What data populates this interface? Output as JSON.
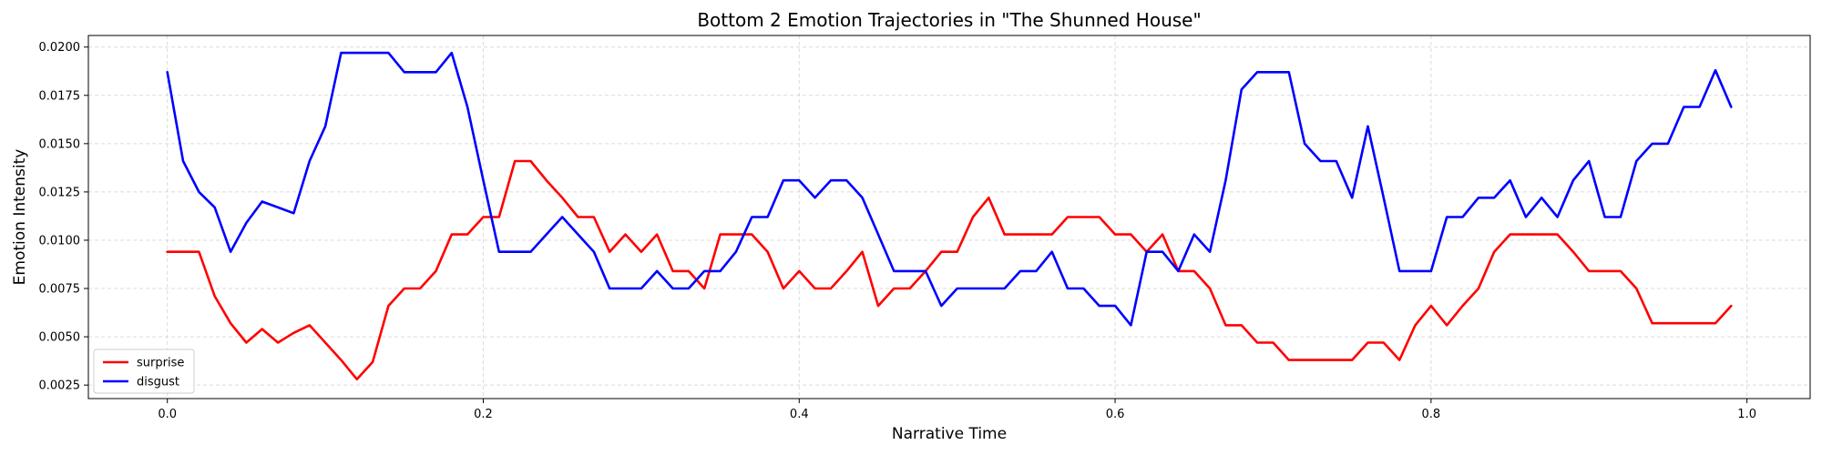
{
  "chart_data": {
    "type": "line",
    "title": "Bottom 2 Emotion Trajectories in \"The Shunned House\"",
    "xlabel": "Narrative Time",
    "ylabel": "Emotion Intensity",
    "xlim": [
      -0.05,
      1.04
    ],
    "ylim": [
      0.0018,
      0.0206
    ],
    "xticks": [
      0.0,
      0.2,
      0.4,
      0.6,
      0.8,
      1.0
    ],
    "xtick_labels": [
      "0.0",
      "0.2",
      "0.4",
      "0.6",
      "0.8",
      "1.0"
    ],
    "yticks": [
      0.0025,
      0.005,
      0.0075,
      0.01,
      0.0125,
      0.015,
      0.0175,
      0.02
    ],
    "ytick_labels": [
      "0.0025",
      "0.0050",
      "0.0075",
      "0.0100",
      "0.0125",
      "0.0150",
      "0.0175",
      "0.0200"
    ],
    "grid": true,
    "legend_position": "bottom-left",
    "x": [
      0.0,
      0.01,
      0.02,
      0.03,
      0.04,
      0.05,
      0.06,
      0.07,
      0.08,
      0.09,
      0.1,
      0.11,
      0.12,
      0.13,
      0.14,
      0.15,
      0.16,
      0.17,
      0.18,
      0.19,
      0.2,
      0.21,
      0.22,
      0.23,
      0.24,
      0.25,
      0.26,
      0.27,
      0.28,
      0.29,
      0.3,
      0.31,
      0.32,
      0.33,
      0.34,
      0.35,
      0.36,
      0.37,
      0.38,
      0.39,
      0.4,
      0.41,
      0.42,
      0.43,
      0.44,
      0.45,
      0.46,
      0.47,
      0.48,
      0.49,
      0.5,
      0.51,
      0.52,
      0.53,
      0.54,
      0.55,
      0.56,
      0.57,
      0.58,
      0.59,
      0.6,
      0.61,
      0.62,
      0.63,
      0.64,
      0.65,
      0.66,
      0.67,
      0.68,
      0.69,
      0.7,
      0.71,
      0.72,
      0.73,
      0.74,
      0.75,
      0.76,
      0.77,
      0.78,
      0.79,
      0.8,
      0.81,
      0.82,
      0.83,
      0.84,
      0.85,
      0.86,
      0.87,
      0.88,
      0.89,
      0.9,
      0.91,
      0.92,
      0.93,
      0.94,
      0.95,
      0.96,
      0.97,
      0.98,
      0.99
    ],
    "series": [
      {
        "name": "surprise",
        "color": "#ff0000",
        "values": [
          0.0094,
          0.0094,
          0.0094,
          0.0071,
          0.0057,
          0.0047,
          0.0054,
          0.0047,
          0.0052,
          0.0056,
          0.0047,
          0.0038,
          0.0028,
          0.0037,
          0.0066,
          0.0075,
          0.0075,
          0.0084,
          0.0103,
          0.0103,
          0.0112,
          0.0112,
          0.0141,
          0.0141,
          0.0131,
          0.0122,
          0.0112,
          0.0112,
          0.0094,
          0.0103,
          0.0094,
          0.0103,
          0.0084,
          0.0084,
          0.0075,
          0.0103,
          0.0103,
          0.0103,
          0.0094,
          0.0075,
          0.0084,
          0.0075,
          0.0075,
          0.0084,
          0.0094,
          0.0066,
          0.0075,
          0.0075,
          0.0084,
          0.0094,
          0.0094,
          0.0112,
          0.0122,
          0.0103,
          0.0103,
          0.0103,
          0.0103,
          0.0112,
          0.0112,
          0.0112,
          0.0103,
          0.0103,
          0.0094,
          0.0103,
          0.0084,
          0.0084,
          0.0075,
          0.0056,
          0.0056,
          0.0047,
          0.0047,
          0.0038,
          0.0038,
          0.0038,
          0.0038,
          0.0038,
          0.0047,
          0.0047,
          0.0038,
          0.0056,
          0.0066,
          0.0056,
          0.0066,
          0.0075,
          0.0094,
          0.0103,
          0.0103,
          0.0103,
          0.0103,
          0.0094,
          0.0084,
          0.0084,
          0.0084,
          0.0075,
          0.0057,
          0.0057,
          0.0057,
          0.0057,
          0.0057,
          0.0066
        ]
      },
      {
        "name": "disgust",
        "color": "#0000ff",
        "values": [
          0.0187,
          0.0141,
          0.0125,
          0.0117,
          0.0094,
          0.0109,
          0.012,
          0.0117,
          0.0114,
          0.0141,
          0.0159,
          0.0197,
          0.0197,
          0.0197,
          0.0197,
          0.0187,
          0.0187,
          0.0187,
          0.0197,
          0.0169,
          0.0131,
          0.0094,
          0.0094,
          0.0094,
          0.0103,
          0.0112,
          0.0103,
          0.0094,
          0.0075,
          0.0075,
          0.0075,
          0.0084,
          0.0075,
          0.0075,
          0.0084,
          0.0084,
          0.0094,
          0.0112,
          0.0112,
          0.0131,
          0.0131,
          0.0122,
          0.0131,
          0.0131,
          0.0122,
          0.0103,
          0.0084,
          0.0084,
          0.0084,
          0.0066,
          0.0075,
          0.0075,
          0.0075,
          0.0075,
          0.0084,
          0.0084,
          0.0094,
          0.0075,
          0.0075,
          0.0066,
          0.0066,
          0.0056,
          0.0094,
          0.0094,
          0.0084,
          0.0103,
          0.0094,
          0.0131,
          0.0178,
          0.0187,
          0.0187,
          0.0187,
          0.015,
          0.0141,
          0.0141,
          0.0122,
          0.0159,
          0.0122,
          0.0084,
          0.0084,
          0.0084,
          0.0112,
          0.0112,
          0.0122,
          0.0122,
          0.0131,
          0.0112,
          0.0122,
          0.0112,
          0.0131,
          0.0141,
          0.0112,
          0.0112,
          0.0141,
          0.015,
          0.015,
          0.0169,
          0.0169,
          0.0188,
          0.0169
        ]
      }
    ]
  }
}
